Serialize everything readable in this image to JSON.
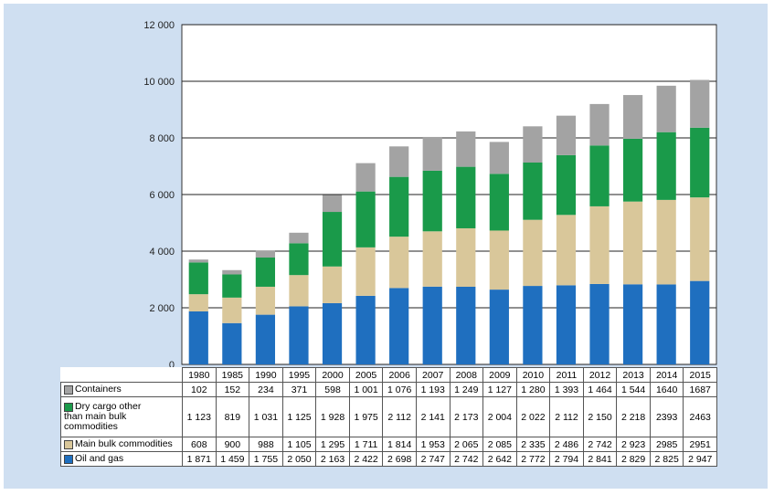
{
  "chart_data": {
    "type": "bar",
    "stacked": true,
    "categories": [
      "1980",
      "1985",
      "1990",
      "1995",
      "2000",
      "2005",
      "2006",
      "2007",
      "2008",
      "2009",
      "2010",
      "2011",
      "2012",
      "2013",
      "2014",
      "2015"
    ],
    "y_ticks": [
      "0",
      "2 000",
      "4 000",
      "6 000",
      "8 000",
      "10 000",
      "12 000"
    ],
    "ylim": [
      0,
      12000
    ],
    "series": [
      {
        "name": "Oil and gas",
        "color": "#1f6fbf",
        "values": [
          1871,
          1459,
          1755,
          2050,
          2163,
          2422,
          2698,
          2747,
          2742,
          2642,
          2772,
          2794,
          2841,
          2829,
          2825,
          2947
        ],
        "labels": [
          "1 871",
          "1 459",
          "1 755",
          "2 050",
          "2 163",
          "2 422",
          "2 698",
          "2 747",
          "2 742",
          "2 642",
          "2 772",
          "2 794",
          "2 841",
          "2 829",
          "2 825",
          "2 947"
        ]
      },
      {
        "name": "Main bulk commodities",
        "color": "#d9c79a",
        "values": [
          608,
          900,
          988,
          1105,
          1295,
          1711,
          1814,
          1953,
          2065,
          2085,
          2335,
          2486,
          2742,
          2923,
          2985,
          2951
        ],
        "labels": [
          "608",
          "900",
          "988",
          "1 105",
          "1 295",
          "1 711",
          "1 814",
          "1 953",
          "2 065",
          "2 085",
          "2 335",
          "2 486",
          "2 742",
          "2 923",
          "2985",
          "2951"
        ]
      },
      {
        "name": "Dry cargo other than main bulk commodities",
        "color": "#1a9a4a",
        "values": [
          1123,
          819,
          1031,
          1125,
          1928,
          1975,
          2112,
          2141,
          2173,
          2004,
          2022,
          2112,
          2150,
          2218,
          2393,
          2463
        ],
        "labels": [
          "1 123",
          "819",
          "1 031",
          "1 125",
          "1 928",
          "1 975",
          "2 112",
          "2 141",
          "2 173",
          "2 004",
          "2 022",
          "2 112",
          "2 150",
          "2 218",
          "2393",
          "2463"
        ]
      },
      {
        "name": "Containers",
        "color": "#a3a3a3",
        "values": [
          102,
          152,
          234,
          371,
          598,
          1001,
          1076,
          1193,
          1249,
          1127,
          1280,
          1393,
          1464,
          1544,
          1640,
          1687
        ],
        "labels": [
          "102",
          "152",
          "234",
          "371",
          "598",
          "1 001",
          "1 076",
          "1 193",
          "1 249",
          "1 127",
          "1 280",
          "1 393",
          "1 464",
          "1 544",
          "1640",
          "1687"
        ]
      }
    ],
    "table_row_order": [
      3,
      2,
      1,
      0
    ],
    "label_lines": {
      "0": [
        "Oil and gas"
      ],
      "1": [
        "Main bulk commodities"
      ],
      "2": [
        "Dry cargo other",
        "than main bulk",
        "commodities"
      ],
      "3": [
        "Containers"
      ]
    }
  }
}
